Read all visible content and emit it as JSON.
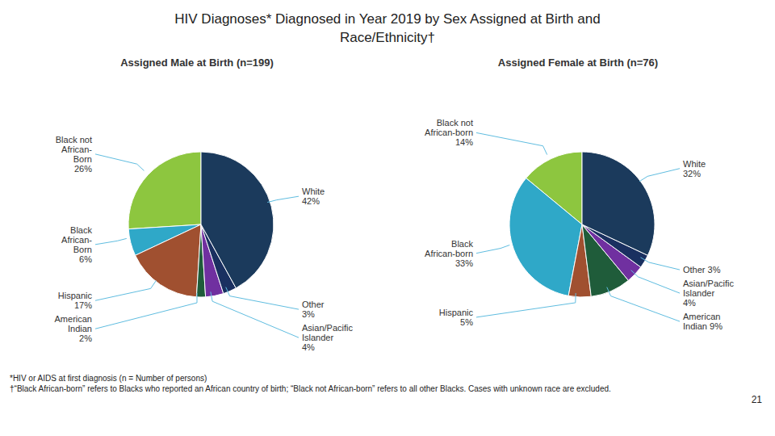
{
  "title": "HIV Diagnoses* Diagnosed in Year 2019 by Sex Assigned at Birth and\nRace/Ethnicity†",
  "chart_data": [
    {
      "type": "pie",
      "title": "Assigned Male at Birth (n=199)",
      "values": [
        26,
        6,
        17,
        2,
        4,
        3,
        42
      ],
      "value_labels": [
        "Black not\nAfrican-\nBorn\n26%",
        "Black\nAfrican-\nBorn\n6%",
        "Hispanic\n17%",
        "American\nIndian\n2%",
        "Asian/Pacific\nIslander\n4%",
        "Other\n3%",
        "White\n42%"
      ],
      "colors": [
        "#8dc63f",
        "#2fa8c8",
        "#a05030",
        "#1f5c3a",
        "#7030a0",
        "#1a3060",
        "#1b3a5c"
      ],
      "data_labels": true
    },
    {
      "type": "pie",
      "title": "Assigned Female at Birth (n=76)",
      "values": [
        14,
        33,
        5,
        9,
        4,
        3,
        32
      ],
      "value_labels": [
        "Black not\nAfrican-born\n14%",
        "Black\nAfrican-born\n33%",
        "Hispanic\n5%",
        "American\nIndian 9%",
        "Asian/Pacific\nIslander\n4%",
        "Other 3%",
        "White\n32%"
      ],
      "colors": [
        "#8dc63f",
        "#2fa8c8",
        "#a05030",
        "#1f5c3a",
        "#7030a0",
        "#1a3060",
        "#1b3a5c"
      ],
      "data_labels": true
    }
  ],
  "annotations": [
    "*HIV or AIDS at first diagnosis  (n = Number of persons)",
    "†“Black African-born” refers to Blacks who reported an African country of birth; “Black not African-born” refers to all other Blacks.  Cases with unknown race are excluded.",
    "21"
  ]
}
